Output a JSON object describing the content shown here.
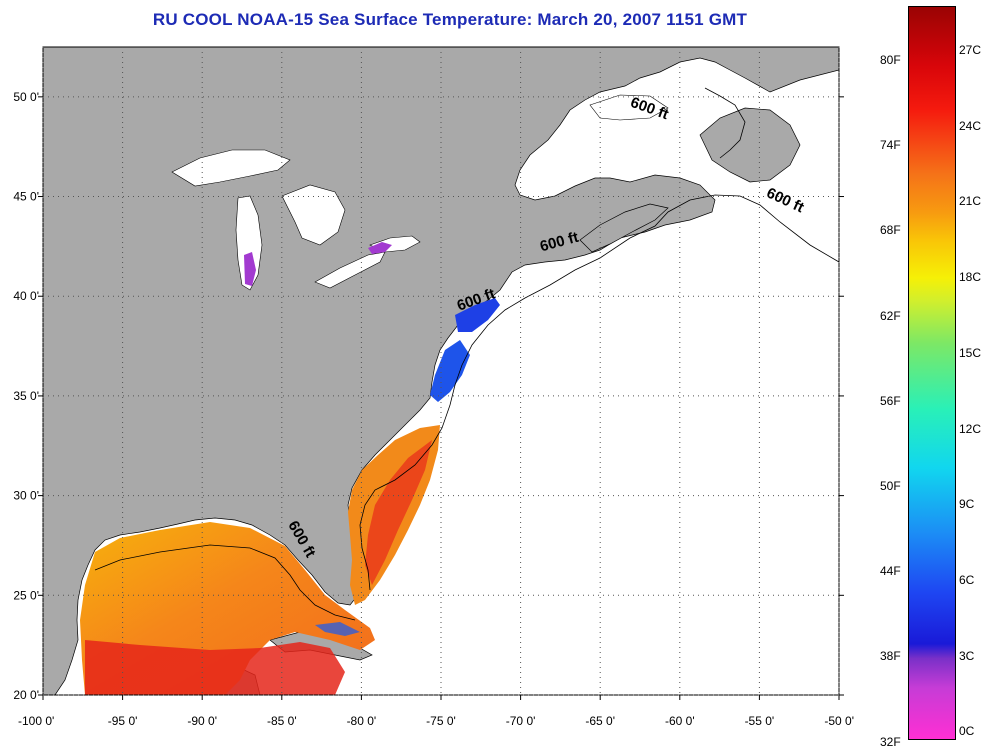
{
  "title": "RU COOL  NOAA-15  Sea Surface Temperature:  March 20, 2007 1151 GMT",
  "map": {
    "lon_range": [
      -100,
      -50
    ],
    "lat_range": [
      20,
      52.5
    ],
    "lon_ticks": [
      {
        "v": -100,
        "label": "-100 0'"
      },
      {
        "v": -95,
        "label": "-95 0'"
      },
      {
        "v": -90,
        "label": "-90 0'"
      },
      {
        "v": -85,
        "label": "-85 0'"
      },
      {
        "v": -80,
        "label": "-80 0'"
      },
      {
        "v": -75,
        "label": "-75 0'"
      },
      {
        "v": -70,
        "label": "-70 0'"
      },
      {
        "v": -65,
        "label": "-65 0'"
      },
      {
        "v": -60,
        "label": "-60 0'"
      },
      {
        "v": -55,
        "label": "-55 0'"
      },
      {
        "v": -50,
        "label": "-50 0'"
      }
    ],
    "lat_ticks": [
      {
        "v": 20,
        "label": "20 0'"
      },
      {
        "v": 25,
        "label": "25 0'"
      },
      {
        "v": 30,
        "label": "30 0'"
      },
      {
        "v": 35,
        "label": "35 0'"
      },
      {
        "v": 40,
        "label": "40 0'"
      },
      {
        "v": 45,
        "label": "45 0'"
      },
      {
        "v": 50,
        "label": "50 0'"
      }
    ],
    "contour_text": "600 ft",
    "contour_label_points": [
      {
        "lon": -62,
        "lat": 49.2,
        "rot": 20
      },
      {
        "lon": -53.5,
        "lat": 44.6,
        "rot": 25
      },
      {
        "lon": -67.5,
        "lat": 42.5,
        "rot": -15
      },
      {
        "lon": -72.7,
        "lat": 39.6,
        "rot": -20
      },
      {
        "lon": -84,
        "lat": 27.7,
        "rot": 60
      }
    ],
    "colors": {
      "land": "#a9a9a9",
      "ocean_nodata": "#ffffff",
      "grid": "#555555"
    }
  },
  "colorbar": {
    "left_labels": [
      "80F",
      "74F",
      "68F",
      "62F",
      "56F",
      "50F",
      "44F",
      "38F",
      "32F"
    ],
    "right_labels": [
      "27C",
      "24C",
      "21C",
      "18C",
      "15C",
      "12C",
      "9C",
      "6C",
      "3C",
      "0C"
    ]
  }
}
